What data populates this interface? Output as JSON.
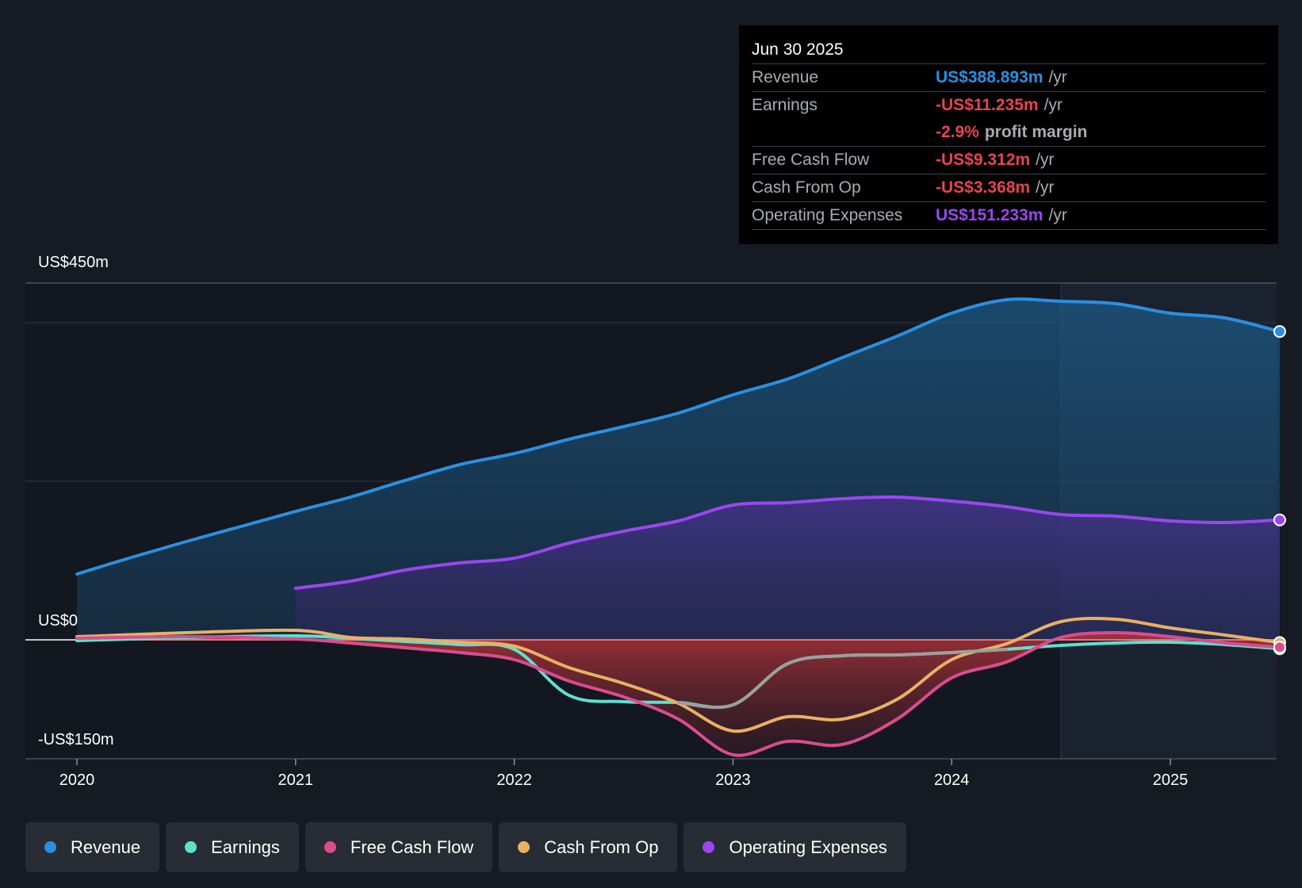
{
  "tooltip": {
    "date": "Jun 30 2025",
    "rows": [
      {
        "label": "Revenue",
        "value": "US$388.893m",
        "unit": "/yr",
        "color": "#2b8fe0"
      },
      {
        "label": "Earnings",
        "value": "-US$11.235m",
        "unit": "/yr",
        "color": "#e64550"
      },
      {
        "label": "",
        "value": "-2.9%",
        "unit": "profit margin",
        "color": "#e64550"
      },
      {
        "label": "Free Cash Flow",
        "value": "-US$9.312m",
        "unit": "/yr",
        "color": "#e64550"
      },
      {
        "label": "Cash From Op",
        "value": "-US$3.368m",
        "unit": "/yr",
        "color": "#e64550"
      },
      {
        "label": "Operating Expenses",
        "value": "US$151.233m",
        "unit": "/yr",
        "color": "#9b46f0"
      }
    ]
  },
  "chart_data": {
    "type": "area",
    "title": "",
    "xlabel": "",
    "ylabel": "",
    "y_tick_labels": {
      "top": "US$450m",
      "zero": "US$0",
      "bottom": "-US$150m"
    },
    "ylim": [
      -150,
      450
    ],
    "xlim": [
      2019.77,
      2025.5
    ],
    "x_ticks": [
      2020,
      2021,
      2022,
      2023,
      2024,
      2025
    ],
    "x_tick_labels": [
      "2020",
      "2021",
      "2022",
      "2023",
      "2024",
      "2025"
    ],
    "forecast_start": 2024.5,
    "series": [
      {
        "name": "Revenue",
        "color": "#2b8fe0",
        "points": [
          [
            2020.0,
            83
          ],
          [
            2020.25,
            104
          ],
          [
            2020.5,
            124
          ],
          [
            2020.75,
            143
          ],
          [
            2021.0,
            162
          ],
          [
            2021.25,
            180
          ],
          [
            2021.5,
            201
          ],
          [
            2021.75,
            221
          ],
          [
            2022.0,
            235
          ],
          [
            2022.25,
            253
          ],
          [
            2022.5,
            269
          ],
          [
            2022.75,
            286
          ],
          [
            2023.0,
            309
          ],
          [
            2023.25,
            329
          ],
          [
            2023.5,
            356
          ],
          [
            2023.75,
            383
          ],
          [
            2024.0,
            412
          ],
          [
            2024.25,
            429
          ],
          [
            2024.5,
            427
          ],
          [
            2024.75,
            424
          ],
          [
            2025.0,
            412
          ],
          [
            2025.25,
            406
          ],
          [
            2025.5,
            388.893
          ]
        ]
      },
      {
        "name": "Operating Expenses",
        "color": "#9b46f0",
        "points": [
          [
            2021.0,
            65
          ],
          [
            2021.25,
            74
          ],
          [
            2021.5,
            88
          ],
          [
            2021.75,
            97
          ],
          [
            2022.0,
            103
          ],
          [
            2022.25,
            122
          ],
          [
            2022.5,
            137
          ],
          [
            2022.75,
            150
          ],
          [
            2023.0,
            170
          ],
          [
            2023.25,
            173
          ],
          [
            2023.5,
            178
          ],
          [
            2023.75,
            180
          ],
          [
            2024.0,
            175
          ],
          [
            2024.25,
            168
          ],
          [
            2024.5,
            158
          ],
          [
            2024.75,
            156
          ],
          [
            2025.0,
            150
          ],
          [
            2025.25,
            148
          ],
          [
            2025.5,
            151.233
          ]
        ]
      },
      {
        "name": "Earnings",
        "color": "#5ee0d0",
        "points": [
          [
            2020.0,
            -1
          ],
          [
            2020.5,
            3
          ],
          [
            2021.0,
            5
          ],
          [
            2021.25,
            2
          ],
          [
            2021.5,
            -2
          ],
          [
            2021.75,
            -6
          ],
          [
            2022.0,
            -12
          ],
          [
            2022.25,
            -70
          ],
          [
            2022.5,
            -78
          ],
          [
            2022.75,
            -79
          ],
          [
            2023.0,
            -82
          ],
          [
            2023.25,
            -30
          ],
          [
            2023.5,
            -20
          ],
          [
            2023.75,
            -19
          ],
          [
            2024.0,
            -16
          ],
          [
            2024.25,
            -12
          ],
          [
            2024.5,
            -7
          ],
          [
            2024.75,
            -4
          ],
          [
            2025.0,
            -3
          ],
          [
            2025.25,
            -6
          ],
          [
            2025.5,
            -11.235
          ]
        ]
      },
      {
        "name": "Free Cash Flow",
        "color": "#d94c8e",
        "points": [
          [
            2020.0,
            2
          ],
          [
            2020.5,
            4
          ],
          [
            2021.0,
            1
          ],
          [
            2021.25,
            -4
          ],
          [
            2021.5,
            -10
          ],
          [
            2021.75,
            -16
          ],
          [
            2022.0,
            -25
          ],
          [
            2022.25,
            -52
          ],
          [
            2022.5,
            -72
          ],
          [
            2022.75,
            -100
          ],
          [
            2023.0,
            -145
          ],
          [
            2023.25,
            -128
          ],
          [
            2023.5,
            -132
          ],
          [
            2023.75,
            -100
          ],
          [
            2024.0,
            -48
          ],
          [
            2024.25,
            -28
          ],
          [
            2024.5,
            3
          ],
          [
            2024.75,
            9
          ],
          [
            2025.0,
            4
          ],
          [
            2025.25,
            -4
          ],
          [
            2025.5,
            -9.312
          ]
        ]
      },
      {
        "name": "Cash From Op",
        "color": "#e9b163",
        "points": [
          [
            2020.0,
            4
          ],
          [
            2020.5,
            9
          ],
          [
            2021.0,
            12
          ],
          [
            2021.25,
            3
          ],
          [
            2021.5,
            1
          ],
          [
            2021.75,
            -3
          ],
          [
            2022.0,
            -8
          ],
          [
            2022.25,
            -35
          ],
          [
            2022.5,
            -55
          ],
          [
            2022.75,
            -80
          ],
          [
            2023.0,
            -115
          ],
          [
            2023.25,
            -97
          ],
          [
            2023.5,
            -100
          ],
          [
            2023.75,
            -75
          ],
          [
            2024.0,
            -25
          ],
          [
            2024.25,
            -5
          ],
          [
            2024.5,
            23
          ],
          [
            2024.75,
            26
          ],
          [
            2025.0,
            15
          ],
          [
            2025.25,
            6
          ],
          [
            2025.5,
            -3.368
          ]
        ]
      }
    ]
  },
  "legend": [
    {
      "label": "Revenue",
      "color": "#2b8fe0"
    },
    {
      "label": "Earnings",
      "color": "#5ee0d0"
    },
    {
      "label": "Free Cash Flow",
      "color": "#d94c8e"
    },
    {
      "label": "Cash From Op",
      "color": "#e9b163"
    },
    {
      "label": "Operating Expenses",
      "color": "#9b46f0"
    }
  ]
}
